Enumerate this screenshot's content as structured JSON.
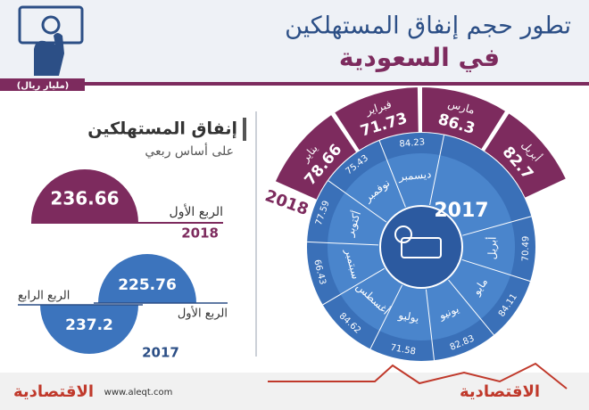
{
  "header": {
    "title": "تطور حجم إنفاق المستهلكين",
    "subtitle": "في السعودية",
    "unit": "(مليار ريال)"
  },
  "quarterly": {
    "title": "إنفاق المستهلكين",
    "subtitle": "على أساس ربعي",
    "groups": [
      {
        "year": "2018",
        "items": [
          {
            "label": "الربع الأول",
            "value": 236.66
          }
        ]
      },
      {
        "year": "2017",
        "items": [
          {
            "label": "الربع الأول",
            "value": 225.76
          },
          {
            "label": "الربع الرابع",
            "value": 237.2
          }
        ]
      }
    ]
  },
  "monthly": {
    "year_2018": "2018",
    "months_2018": [
      {
        "label": "يناير",
        "value": 78.66
      },
      {
        "label": "فبراير",
        "value": 71.73
      },
      {
        "label": "مارس",
        "value": 86.3
      },
      {
        "label": "أبريل",
        "value": 82.7
      }
    ],
    "year_2017": "2017",
    "months_2017": [
      {
        "label": "ديسمبر",
        "value": 84.23
      },
      {
        "label": "نوفمبر",
        "value": 75.43
      },
      {
        "label": "أكتوبر",
        "value": 77.59
      },
      {
        "label": "سبتمبر",
        "value": 66.43
      },
      {
        "label": "أغسطس",
        "value": 84.62
      },
      {
        "label": "يوليو",
        "value": 71.58
      },
      {
        "label": "يونيو",
        "value": 82.83
      },
      {
        "label": "مايو",
        "value": 84.11
      },
      {
        "label": "أبريل",
        "value": 70.49
      }
    ]
  },
  "footer": {
    "brand": "الاقتصادية",
    "url": "www.aleqt.com"
  }
}
